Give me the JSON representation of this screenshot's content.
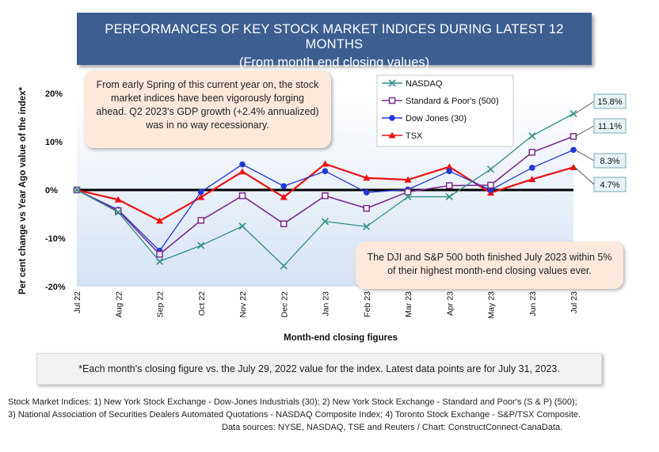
{
  "title": {
    "line1": "PERFORMANCES OF KEY STOCK MARKET INDICES DURING LATEST 12 MONTHS",
    "line2": "(From month end closing values)"
  },
  "notes": {
    "spring": "From early Spring of this current year on, the stock market indices have been vigorously forging ahead. Q2 2023's GDP growth (+2.4% annualized) was in no way recessionary.",
    "djisp": "The DJI and S&P 500 both finished July 2023 within 5% of their highest month-end closing values ever."
  },
  "footnote": "*Each month's closing figure vs. the July 29, 2022 value for the index. Latest data points are for July 31, 2023.",
  "sources": {
    "line1": "Stock Market Indices: 1) New York Stock Exchange - Dow-Jones Industrials (30); 2) New York Stock Exchange - Standard and Poor's (S & P) (500);",
    "line2": "3) National Association of Securities Dealers Automated Quotations - NASDAQ Composite Index; 4) Toronto Stock Exchange - S&P/TSX Composite.",
    "line3": "Data sources: NYSE, NASDAQ, TSE and Reuters / Chart: ConstructConnect-CanaData."
  },
  "chart_data": {
    "type": "line",
    "xlabel": "Month-end closing figures",
    "ylabel": "Per cent change vs Year Ago value of the index*",
    "ylim": [
      -20,
      20
    ],
    "yticks": [
      -20,
      -10,
      0,
      10,
      20
    ],
    "ytick_labels": [
      "-20%",
      "-10%",
      "0%",
      "10%",
      "20%"
    ],
    "categories": [
      "Jul 22",
      "Aug 22",
      "Sep 22",
      "Oct 22",
      "Nov 22",
      "Dec 22",
      "Jan 23",
      "Feb 23",
      "Mar 23",
      "Apr 23",
      "May 23",
      "Jun 23",
      "Jul 23"
    ],
    "legend_position": "top-center",
    "plot_background": [
      "#ffffff",
      "#d6e3f3"
    ],
    "series": [
      {
        "name": "NASDAQ",
        "color": "#2f8f86",
        "marker": "x",
        "values": [
          0,
          -4.6,
          -14.8,
          -11.5,
          -7.5,
          -15.7,
          -6.5,
          -7.6,
          -1.4,
          -1.4,
          4.3,
          11.2,
          15.8
        ],
        "end_label": "15.8%"
      },
      {
        "name": "Standard & Poor's (500)",
        "color": "#7a2a8c",
        "marker": "square",
        "values": [
          0,
          -4.3,
          -13.3,
          -6.3,
          -1.2,
          -7.0,
          -1.2,
          -3.8,
          -0.4,
          0.9,
          1.0,
          7.8,
          11.1
        ],
        "end_label": "11.1%"
      },
      {
        "name": "Dow Jones (30)",
        "color": "#2437d6",
        "marker": "circle",
        "values": [
          0,
          -4.1,
          -12.6,
          -0.4,
          5.3,
          0.8,
          3.9,
          -0.5,
          0.1,
          3.9,
          0.0,
          4.6,
          8.3
        ],
        "end_label": "8.3%"
      },
      {
        "name": "TSX",
        "color": "#ee1111",
        "marker": "triangle",
        "values": [
          0,
          -2.0,
          -6.4,
          -1.5,
          3.8,
          -1.5,
          5.4,
          2.5,
          2.1,
          4.8,
          -0.6,
          2.2,
          4.7
        ],
        "end_label": "4.7%"
      }
    ]
  }
}
